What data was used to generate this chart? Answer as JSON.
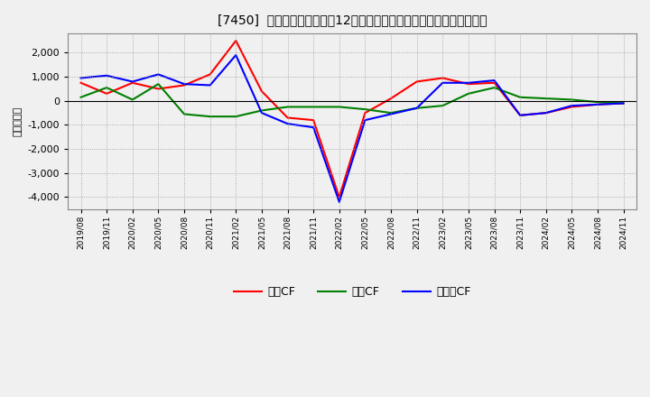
{
  "title": "[7450]  キャッシュフローの12か月移動合計の対前年同期増減額の推移",
  "ylabel": "（百万円）",
  "background_color": "#f0f0f0",
  "plot_background": "#f0f0f0",
  "grid_color": "#999999",
  "x_labels": [
    "2019/08",
    "2019/11",
    "2020/02",
    "2020/05",
    "2020/08",
    "2020/11",
    "2021/02",
    "2021/05",
    "2021/08",
    "2021/11",
    "2022/02",
    "2022/05",
    "2022/08",
    "2022/11",
    "2023/02",
    "2023/05",
    "2023/08",
    "2023/11",
    "2024/02",
    "2024/05",
    "2024/08",
    "2024/11"
  ],
  "operating_cf": [
    750,
    300,
    750,
    500,
    650,
    1100,
    2500,
    400,
    -700,
    -800,
    -4000,
    -500,
    100,
    800,
    950,
    700,
    750,
    -600,
    -500,
    -250,
    -150,
    -100
  ],
  "investing_cf": [
    150,
    550,
    50,
    700,
    -550,
    -650,
    -650,
    -400,
    -250,
    -250,
    -250,
    -350,
    -500,
    -300,
    -200,
    300,
    550,
    150,
    100,
    50,
    -50,
    -100
  ],
  "free_cf": [
    950,
    1050,
    800,
    1100,
    700,
    650,
    1900,
    -500,
    -950,
    -1100,
    -4200,
    -800,
    -550,
    -300,
    750,
    750,
    850,
    -600,
    -500,
    -200,
    -150,
    -100
  ],
  "operating_color": "#ff0000",
  "investing_color": "#008000",
  "free_color": "#0000ff",
  "ylim": [
    -4500,
    2800
  ],
  "yticks": [
    -4000,
    -3000,
    -2000,
    -1000,
    0,
    1000,
    2000
  ],
  "legend_labels": [
    "営業CF",
    "投資CF",
    "フリーCF"
  ]
}
